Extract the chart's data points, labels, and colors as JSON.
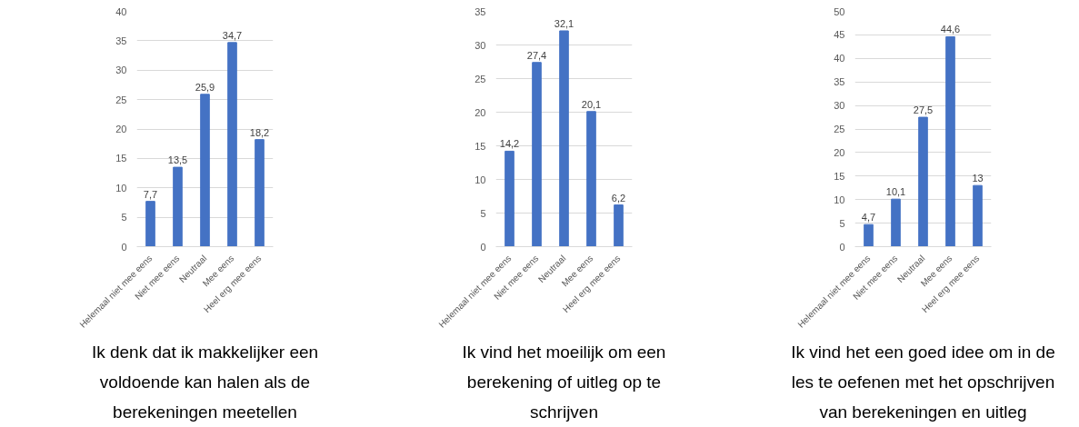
{
  "chart_data": [
    {
      "type": "bar",
      "title": "Ik denk dat ik makkelijker een voldoende kan halen als de berekeningen meetellen",
      "categories": [
        "Helemaal niet mee eens",
        "Niet mee eens",
        "Neutraal",
        "Mee eens",
        "Heel erg mee eens"
      ],
      "values": [
        7.7,
        13.5,
        25.9,
        34.7,
        18.2
      ],
      "value_labels": [
        "7,7",
        "13,5",
        "25,9",
        "34,7",
        "18,2"
      ],
      "color": "#4472c4",
      "ylim": [
        0,
        40
      ],
      "yticks": [
        0,
        5,
        10,
        15,
        20,
        25,
        30,
        35,
        40
      ],
      "grid": "y"
    },
    {
      "type": "bar",
      "title": "Ik vind het moeilijk om een berekening of uitleg op te schrijven",
      "categories": [
        "Helemaal niet mee eens",
        "Niet mee eens",
        "Neutraal",
        "Mee eens",
        "Heel erg mee eens"
      ],
      "values": [
        14.2,
        27.4,
        32.1,
        20.1,
        6.2
      ],
      "value_labels": [
        "14,2",
        "27,4",
        "32,1",
        "20,1",
        "6,2"
      ],
      "color": "#4472c4",
      "ylim": [
        0,
        35
      ],
      "yticks": [
        0,
        5,
        10,
        15,
        20,
        25,
        30,
        35
      ],
      "grid": "y"
    },
    {
      "type": "bar",
      "title": "Ik vind het een goed idee om in de les te oefenen met het opschrijven van berekeningen en uitleg",
      "categories": [
        "Helemaal niet mee eens",
        "Niet mee eens",
        "Neutraal",
        "Mee eens",
        "Heel erg mee eens"
      ],
      "values": [
        4.7,
        10.1,
        27.5,
        44.6,
        13
      ],
      "value_labels": [
        "4,7",
        "10,1",
        "27,5",
        "44,6",
        "13"
      ],
      "color": "#4472c4",
      "ylim": [
        0,
        50
      ],
      "yticks": [
        0,
        5,
        10,
        15,
        20,
        25,
        30,
        35,
        40,
        45,
        50
      ],
      "grid": "y"
    }
  ]
}
